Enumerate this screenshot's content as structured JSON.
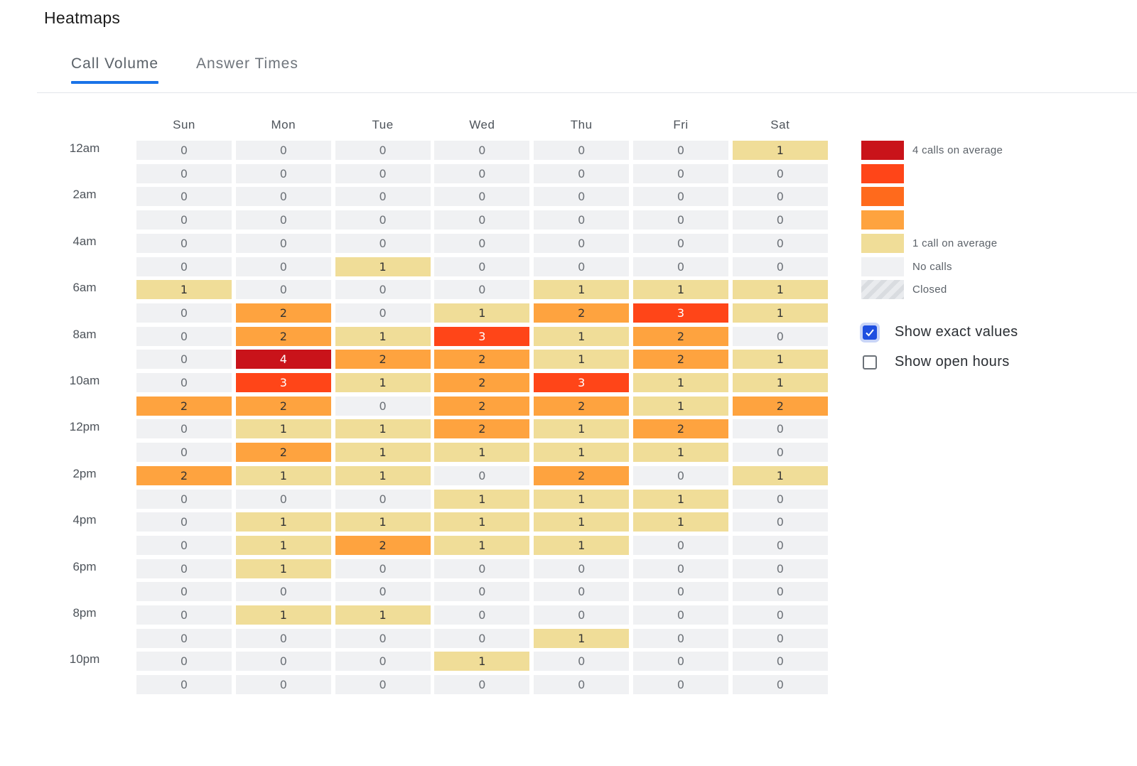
{
  "page": {
    "title": "Heatmaps"
  },
  "tabs": [
    {
      "label": "Call Volume",
      "active": true
    },
    {
      "label": "Answer Times",
      "active": false
    }
  ],
  "chart_data": {
    "type": "heatmap",
    "title": "Call Volume",
    "columns": [
      "Sun",
      "Mon",
      "Tue",
      "Wed",
      "Thu",
      "Fri",
      "Sat"
    ],
    "hour_labels": [
      "12am",
      "2am",
      "4am",
      "6am",
      "8am",
      "10am",
      "12pm",
      "2pm",
      "4pm",
      "6pm",
      "8pm",
      "10pm"
    ],
    "values": [
      [
        0,
        0,
        0,
        0,
        0,
        0,
        1
      ],
      [
        0,
        0,
        0,
        0,
        0,
        0,
        0
      ],
      [
        0,
        0,
        0,
        0,
        0,
        0,
        0
      ],
      [
        0,
        0,
        0,
        0,
        0,
        0,
        0
      ],
      [
        0,
        0,
        0,
        0,
        0,
        0,
        0
      ],
      [
        0,
        0,
        1,
        0,
        0,
        0,
        0
      ],
      [
        1,
        0,
        0,
        0,
        1,
        1,
        1
      ],
      [
        0,
        2,
        0,
        1,
        2,
        3,
        1
      ],
      [
        0,
        2,
        1,
        3,
        1,
        2,
        0
      ],
      [
        0,
        4,
        2,
        2,
        1,
        2,
        1
      ],
      [
        0,
        3,
        1,
        2,
        3,
        1,
        1
      ],
      [
        2,
        2,
        0,
        2,
        2,
        1,
        2
      ],
      [
        0,
        1,
        1,
        2,
        1,
        2,
        0
      ],
      [
        0,
        2,
        1,
        1,
        1,
        1,
        0
      ],
      [
        2,
        1,
        1,
        0,
        2,
        0,
        1
      ],
      [
        0,
        0,
        0,
        1,
        1,
        1,
        0
      ],
      [
        0,
        1,
        1,
        1,
        1,
        1,
        0
      ],
      [
        0,
        1,
        2,
        1,
        1,
        0,
        0
      ],
      [
        0,
        1,
        0,
        0,
        0,
        0,
        0
      ],
      [
        0,
        0,
        0,
        0,
        0,
        0,
        0
      ],
      [
        0,
        1,
        1,
        0,
        0,
        0,
        0
      ],
      [
        0,
        0,
        0,
        0,
        1,
        0,
        0
      ],
      [
        0,
        0,
        0,
        1,
        0,
        0,
        0
      ],
      [
        0,
        0,
        0,
        0,
        0,
        0,
        0
      ]
    ],
    "value_range": [
      0,
      4
    ],
    "color_scale": {
      "0": "#f0f1f3",
      "1": "#f0dd98",
      "2": "#fea33f",
      "3": "#ff4518",
      "4": "#c9131a"
    },
    "text_colors": {
      "dark": "#333333",
      "zero": "#6b7076",
      "light": "#ffffff"
    },
    "legend": [
      {
        "color": "#c9131a",
        "label": "4 calls on average"
      },
      {
        "color": "#ff4518",
        "label": ""
      },
      {
        "color": "#ff6a1c",
        "label": ""
      },
      {
        "color": "#fea33f",
        "label": ""
      },
      {
        "color": "#f0dd98",
        "label": "1 call on average"
      },
      {
        "color": "#f0f1f3",
        "label": "No calls"
      },
      {
        "color": "closed",
        "label": "Closed"
      }
    ]
  },
  "options": [
    {
      "label": "Show exact values",
      "checked": true
    },
    {
      "label": "Show open hours",
      "checked": false
    }
  ]
}
